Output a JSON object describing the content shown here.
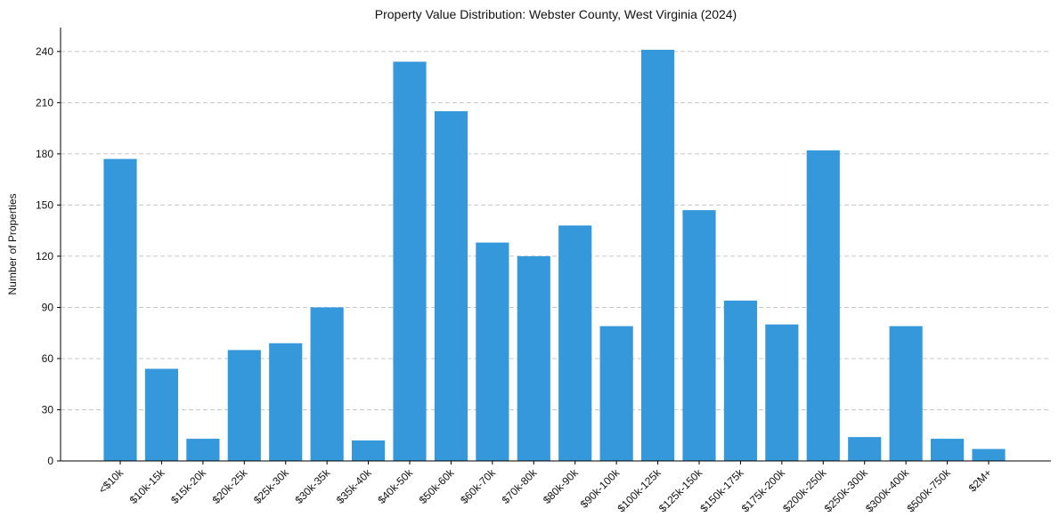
{
  "chart_data": {
    "type": "bar",
    "title": "Property Value Distribution: Webster County, West Virginia (2024)",
    "xlabel": "",
    "ylabel": "Number of Properties",
    "ylim": [
      0,
      254
    ],
    "yticks": [
      0,
      30,
      60,
      90,
      120,
      150,
      180,
      210,
      240
    ],
    "grid": "y-dashed",
    "categories": [
      "<$10k",
      "$10k-15k",
      "$15k-20k",
      "$20k-25k",
      "$25k-30k",
      "$30k-35k",
      "$35k-40k",
      "$40k-50k",
      "$50k-60k",
      "$60k-70k",
      "$70k-80k",
      "$80k-90k",
      "$90k-100k",
      "$100k-125k",
      "$125k-150k",
      "$150k-175k",
      "$175k-200k",
      "$200k-250k",
      "$250k-300k",
      "$300k-400k",
      "$500k-750k",
      "$2M+"
    ],
    "values": [
      177,
      54,
      13,
      65,
      69,
      90,
      12,
      234,
      205,
      128,
      120,
      138,
      79,
      241,
      147,
      94,
      80,
      182,
      14,
      79,
      13,
      7
    ],
    "bar_color": "#3498db"
  }
}
